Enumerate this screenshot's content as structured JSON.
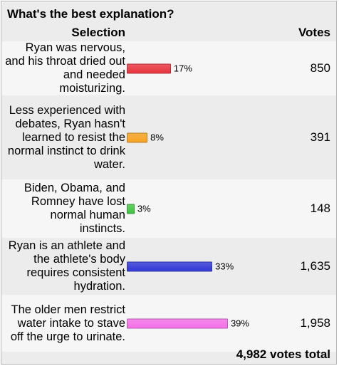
{
  "question": "What's the best explanation?",
  "headers": {
    "selection": "Selection",
    "votes": "Votes"
  },
  "options": [
    {
      "text": "Ryan was nervous, and his throat dried out and needed moisturizing.",
      "percent": 17,
      "percent_label": "17%",
      "votes": "850",
      "color": "#e8323c"
    },
    {
      "text": "Less experienced with debates, Ryan hasn't learned to resist the normal instinct to drink water.",
      "percent": 8,
      "percent_label": "8%",
      "votes": "391",
      "color": "#f6a21e"
    },
    {
      "text": "Biden, Obama, and Romney have lost normal human instincts.",
      "percent": 3,
      "percent_label": "3%",
      "votes": "148",
      "color": "#3fc43f"
    },
    {
      "text": "Ryan is an athlete and the athlete's body requires consistent hydration.",
      "percent": 33,
      "percent_label": "33%",
      "votes": "1,635",
      "color": "#2f37d6"
    },
    {
      "text": "The older men restrict water intake to stave off the urge to urinate.",
      "percent": 39,
      "percent_label": "39%",
      "votes": "1,958",
      "color": "#f46ee8"
    }
  ],
  "total": "4,982 votes total"
}
